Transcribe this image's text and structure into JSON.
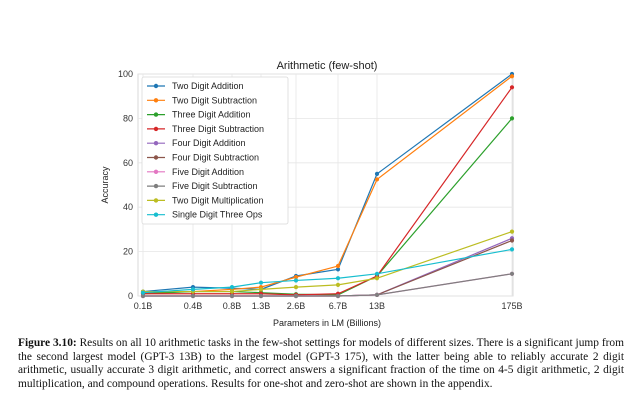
{
  "chart_data": {
    "type": "line",
    "title": "Arithmetic (few-shot)",
    "xlabel": "Parameters in LM (Billions)",
    "ylabel": "Accuracy",
    "x_tick_labels": [
      "0.1B",
      "0.4B",
      "0.8B",
      "1.3B",
      "2.6B",
      "6.7B",
      "13B",
      "175B"
    ],
    "ylim": [
      0,
      100
    ],
    "y_ticks": [
      0,
      20,
      40,
      60,
      80,
      100
    ],
    "grid": true,
    "legend_position": "top-left",
    "series": [
      {
        "name": "Two Digit Addition",
        "color": "#1f77b4",
        "values": [
          2,
          4,
          3.5,
          3,
          9,
          12,
          55,
          100
        ]
      },
      {
        "name": "Two Digit Subtraction",
        "color": "#ff7f0e",
        "values": [
          1.5,
          2,
          3,
          4,
          8.5,
          13.5,
          52.5,
          99
        ]
      },
      {
        "name": "Three Digit Addition",
        "color": "#2ca02c",
        "values": [
          1,
          2,
          2,
          1.5,
          0.8,
          0.5,
          9,
          80
        ]
      },
      {
        "name": "Three Digit Subtraction",
        "color": "#d62728",
        "values": [
          1,
          1,
          1,
          1,
          0.5,
          1,
          9,
          94
        ]
      },
      {
        "name": "Four Digit Addition",
        "color": "#9467bd",
        "values": [
          0,
          0,
          0,
          0,
          0,
          0,
          0.5,
          26
        ]
      },
      {
        "name": "Four Digit Subtraction",
        "color": "#8c564b",
        "values": [
          0,
          0,
          0,
          0,
          0,
          0,
          0.5,
          25
        ]
      },
      {
        "name": "Five Digit Addition",
        "color": "#e377c2",
        "values": [
          0,
          0,
          0,
          0,
          0,
          0,
          0.5,
          10
        ]
      },
      {
        "name": "Five Digit Subtraction",
        "color": "#7f7f7f",
        "values": [
          0,
          0,
          0,
          0,
          0,
          0,
          0.5,
          10
        ]
      },
      {
        "name": "Two Digit Multiplication",
        "color": "#bcbd22",
        "values": [
          2,
          2,
          2,
          3,
          4,
          5,
          8,
          29
        ]
      },
      {
        "name": "Single Digit Three Ops",
        "color": "#17becf",
        "values": [
          1.5,
          3,
          4,
          6,
          7,
          8,
          10,
          21
        ]
      }
    ]
  },
  "caption": {
    "label": "Figure 3.10:",
    "text": " Results on all 10 arithmetic tasks in the few-shot settings for models of different sizes. There is a significant jump from the second largest model (GPT-3 13B) to the largest model (GPT-3 175), with the latter being able to reliably accurate 2 digit arithmetic, usually accurate 3 digit arithmetic, and correct answers a significant fraction of the time on 4-5 digit arithmetic, 2 digit multiplication, and compound operations. Results for one-shot and zero-shot are shown in the appendix."
  }
}
